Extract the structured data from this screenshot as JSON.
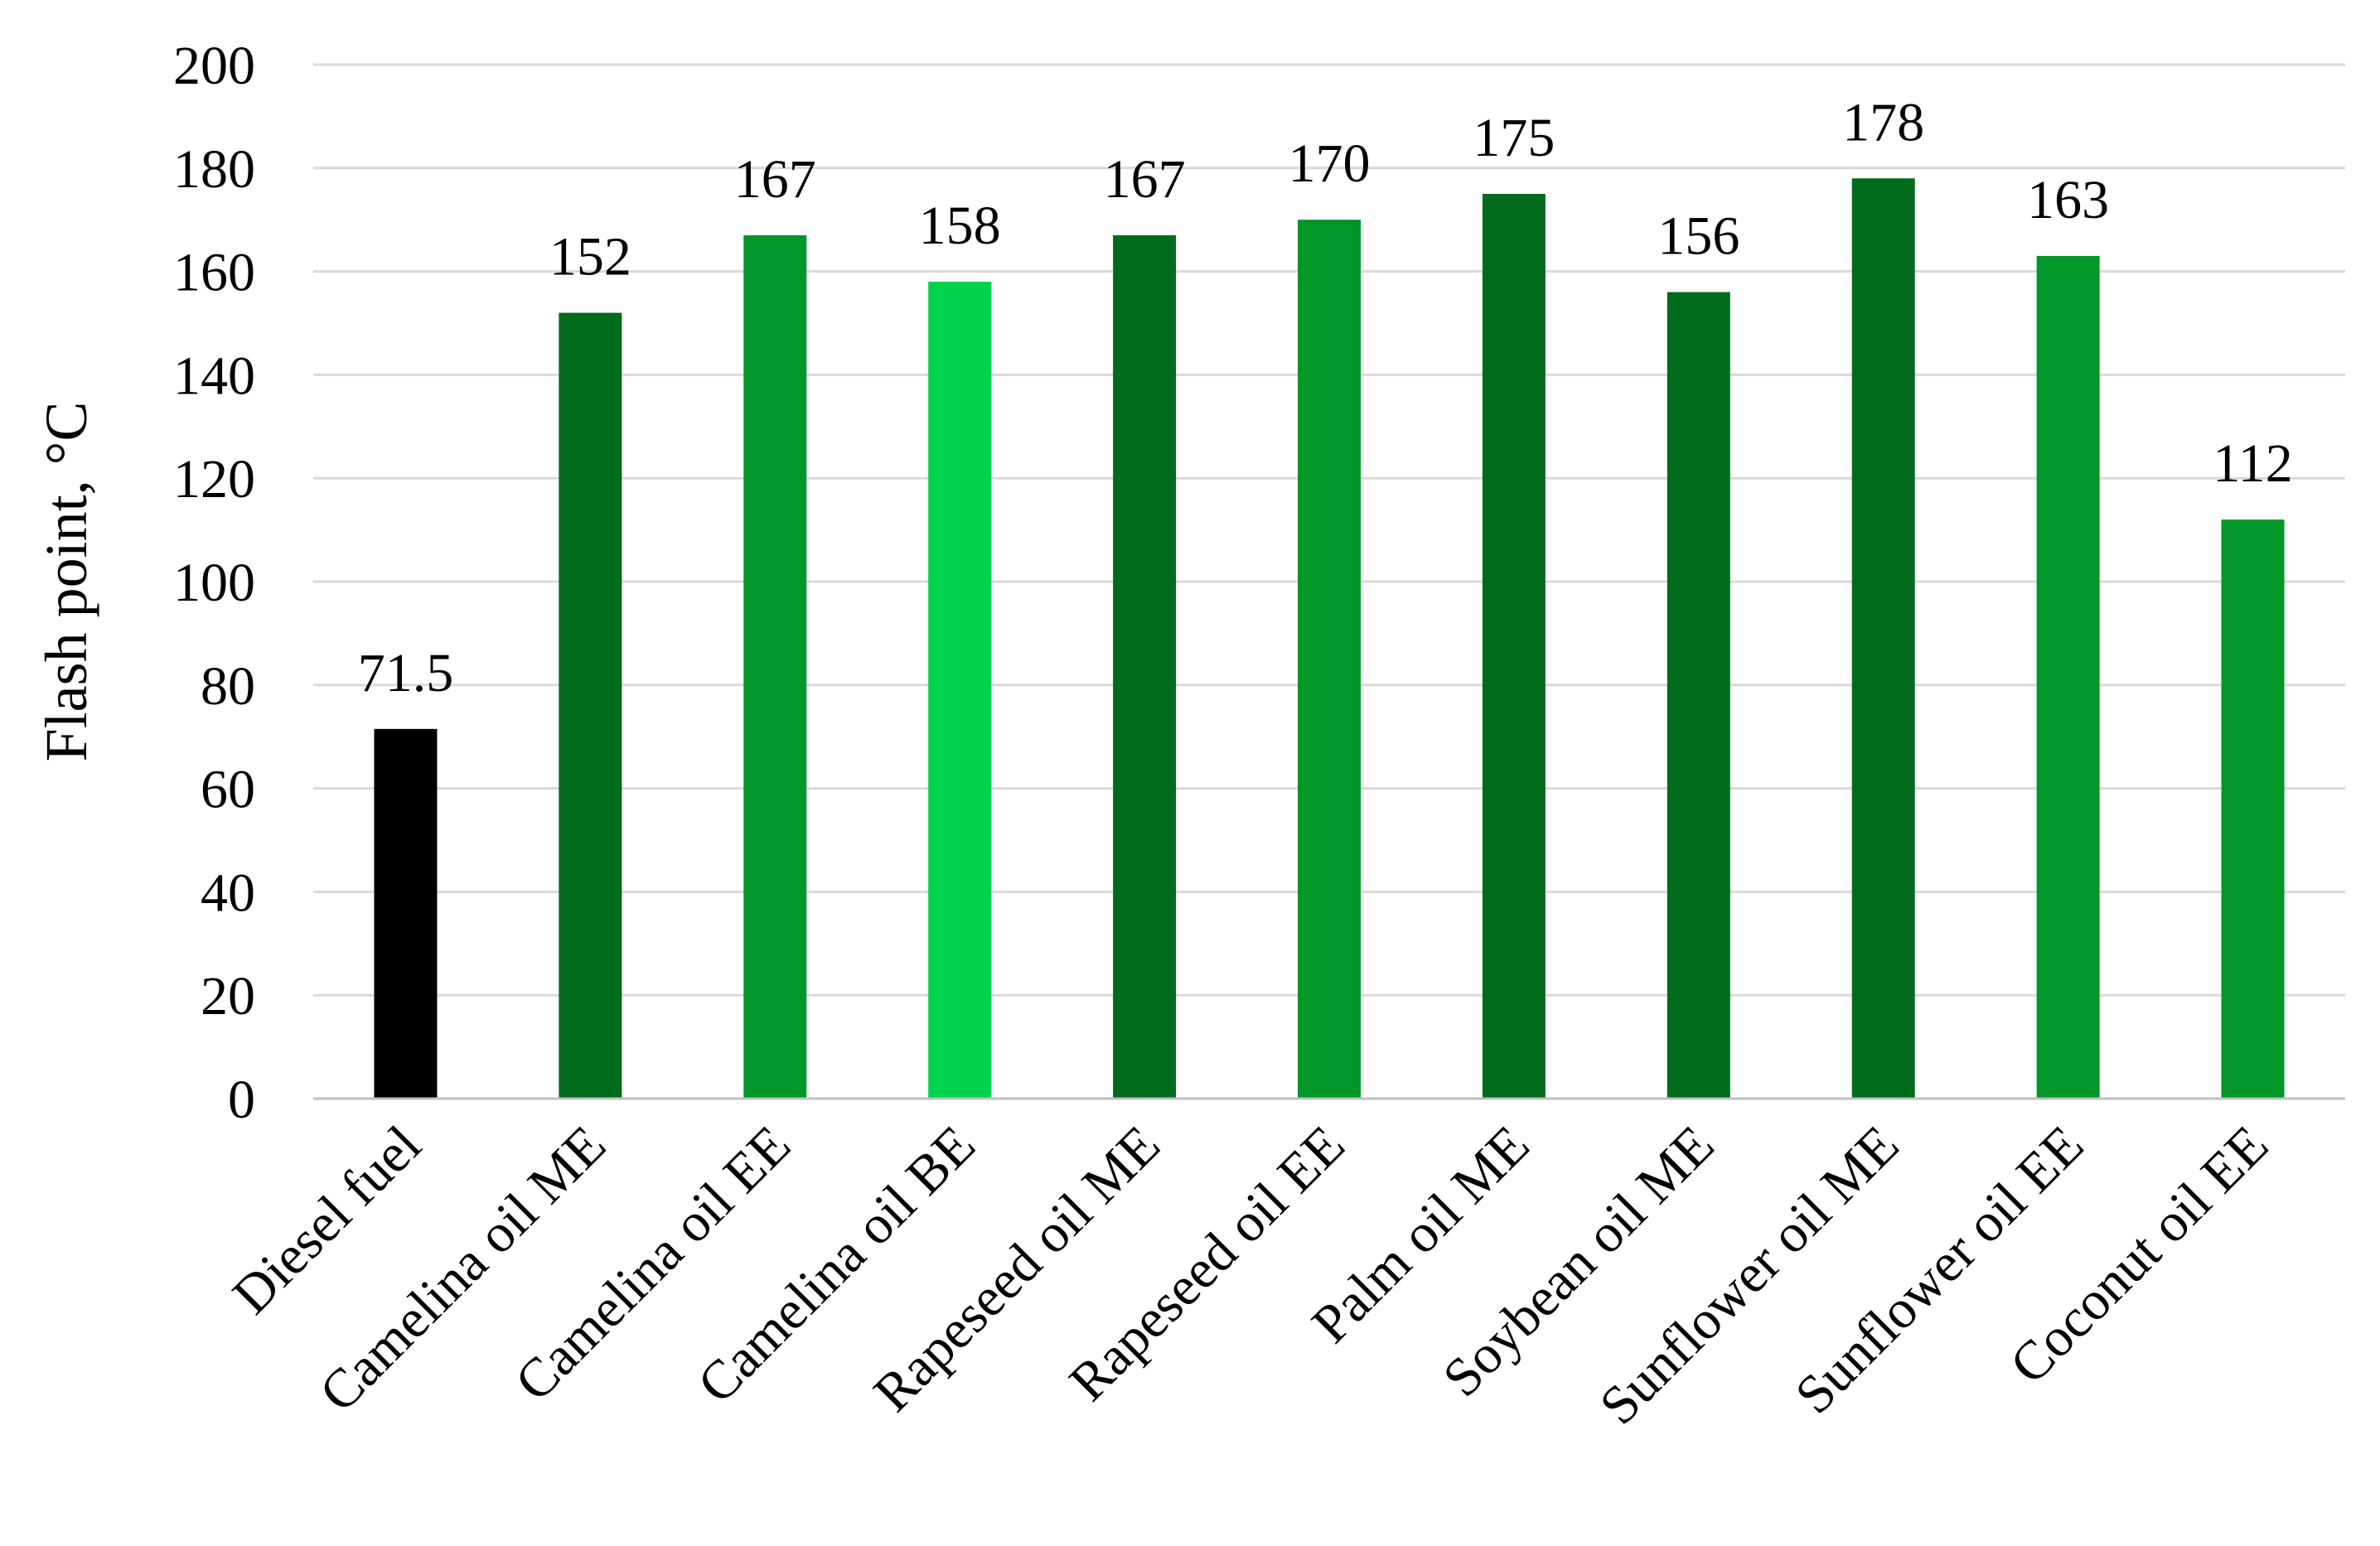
{
  "chart_data": {
    "type": "bar",
    "title": "",
    "xlabel": "",
    "ylabel": "Flash point, °C",
    "ylim": [
      0,
      200
    ],
    "yticks": [
      0,
      20,
      40,
      60,
      80,
      100,
      120,
      140,
      160,
      180,
      200
    ],
    "grid": true,
    "legend": "none",
    "categories": [
      "Diesel fuel",
      "Camelina oil ME",
      "Camelina oil EE",
      "Camelina oil BE",
      "Rapeseed oil ME",
      "Rapeseed oil EE",
      "Palm oil ME",
      "Soybean oil ME",
      "Sunflower oil ME",
      "Sunflower oil EE",
      "Coconut oil EE"
    ],
    "values": [
      71.5,
      152,
      167,
      158,
      167,
      170,
      175,
      156,
      178,
      163,
      112
    ],
    "labels": [
      "71.5",
      "152",
      "167",
      "158",
      "167",
      "170",
      "175",
      "156",
      "178",
      "163",
      "112"
    ],
    "colors": [
      "#000000",
      "#006b1b",
      "#009728",
      "#00d34d",
      "#006b1b",
      "#009728",
      "#006b1b",
      "#006b1b",
      "#006b1b",
      "#009728",
      "#009728"
    ]
  }
}
